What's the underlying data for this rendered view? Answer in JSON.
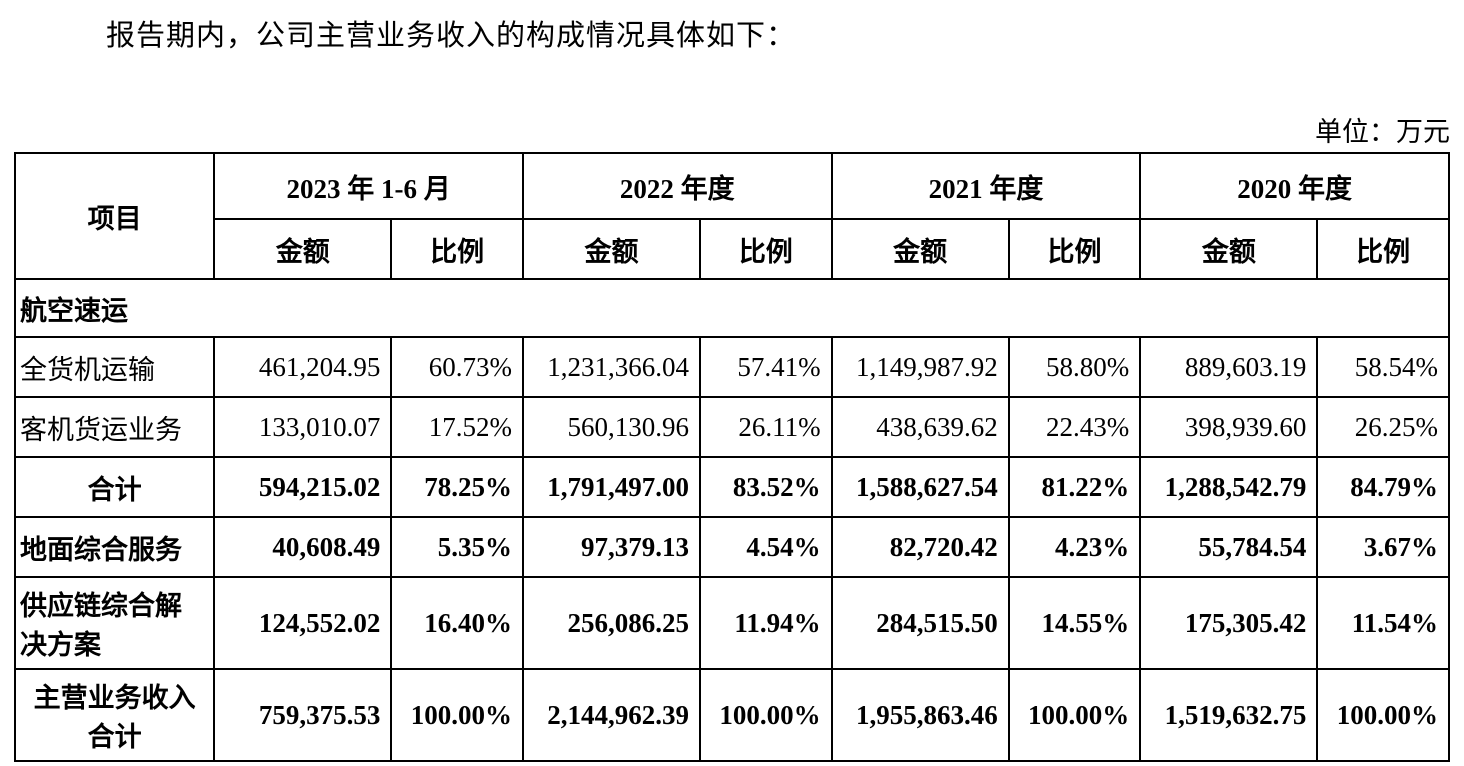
{
  "intro": "报告期内，公司主营业务收入的构成情况具体如下：",
  "unit_label": "单位：万元",
  "table": {
    "item_header": "项目",
    "period_headers": [
      "2023 年 1-6 月",
      "2022 年度",
      "2021 年度",
      "2020 年度"
    ],
    "sub_headers": {
      "amount": "金额",
      "ratio": "比例"
    },
    "section_header": "航空速运",
    "rows": [
      {
        "label": "全货机运输",
        "cells": [
          "461,204.95",
          "60.73%",
          "1,231,366.04",
          "57.41%",
          "1,149,987.92",
          "58.80%",
          "889,603.19",
          "58.54%"
        ]
      },
      {
        "label": "客机货运业务",
        "cells": [
          "133,010.07",
          "17.52%",
          "560,130.96",
          "26.11%",
          "438,639.62",
          "22.43%",
          "398,939.60",
          "26.25%"
        ]
      },
      {
        "label": "合计",
        "cells": [
          "594,215.02",
          "78.25%",
          "1,791,497.00",
          "83.52%",
          "1,588,627.54",
          "81.22%",
          "1,288,542.79",
          "84.79%"
        ]
      },
      {
        "label": "地面综合服务",
        "cells": [
          "40,608.49",
          "5.35%",
          "97,379.13",
          "4.54%",
          "82,720.42",
          "4.23%",
          "55,784.54",
          "3.67%"
        ]
      },
      {
        "label": "供应链综合解决方案",
        "cells": [
          "124,552.02",
          "16.40%",
          "256,086.25",
          "11.94%",
          "284,515.50",
          "14.55%",
          "175,305.42",
          "11.54%"
        ]
      },
      {
        "label": "主营业务收入合计",
        "cells": [
          "759,375.53",
          "100.00%",
          "2,144,962.39",
          "100.00%",
          "1,955,863.46",
          "100.00%",
          "1,519,632.75",
          "100.00%"
        ]
      }
    ]
  }
}
